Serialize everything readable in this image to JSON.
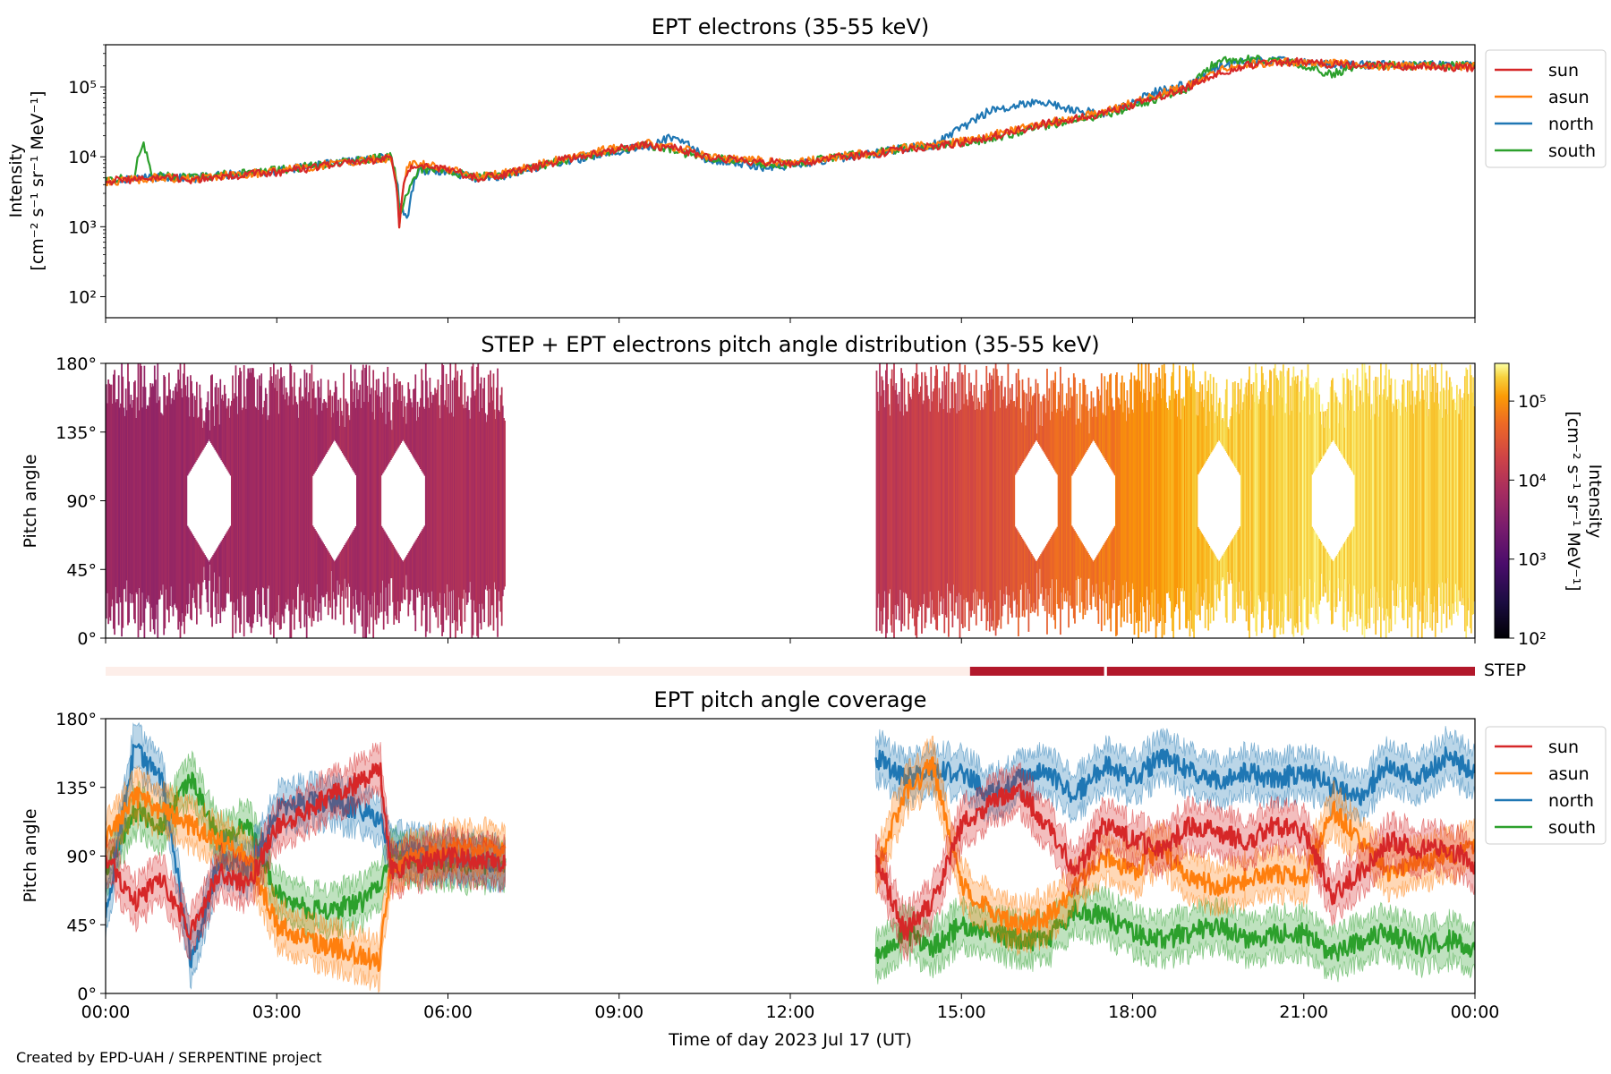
{
  "figure": {
    "footer": "Created by EPD-UAH / SERPENTINE project",
    "xlabel": "Time of day 2023 Jul 17 (UT)",
    "x_ticks": [
      "00:00",
      "03:00",
      "06:00",
      "09:00",
      "12:00",
      "15:00",
      "18:00",
      "21:00",
      "00:00"
    ]
  },
  "colors": {
    "sun": "#d62728",
    "asun": "#ff7f0e",
    "north": "#1f77b4",
    "south": "#2ca02c",
    "step": "#b2182b",
    "step_off": "#fdeee9"
  },
  "chart_data": [
    {
      "type": "line",
      "title": "EPT electrons (35-55 keV)",
      "ylabel_line1": "Intensity",
      "ylabel_line2": "[cm⁻² s⁻¹ sr⁻¹ MeV⁻¹]",
      "yscale": "log",
      "ylim": [
        50,
        400000
      ],
      "y_ticks": [
        "10²",
        "10³",
        "10⁴",
        "10⁵"
      ],
      "x_range_hours": [
        0,
        24
      ],
      "legend": "upper right outside",
      "series": [
        {
          "name": "sun",
          "x": [
            0,
            0.5,
            1,
            1.5,
            2,
            2.5,
            3,
            3.5,
            4,
            4.5,
            5,
            5.15,
            5.3,
            5.5,
            6,
            6.5,
            7,
            7.5,
            8,
            8.5,
            9,
            9.5,
            10,
            10.5,
            11,
            11.5,
            12,
            12.5,
            13,
            13.5,
            14,
            14.5,
            15,
            15.5,
            16,
            16.5,
            17,
            17.5,
            18,
            18.5,
            19,
            19.5,
            20,
            20.5,
            21,
            21.5,
            22,
            22.5,
            23,
            23.5,
            24
          ],
          "y": [
            4500,
            4800,
            5000,
            4700,
            5200,
            5600,
            6000,
            6800,
            7800,
            8600,
            9500,
            800,
            7000,
            7500,
            6500,
            5000,
            5500,
            7000,
            9000,
            11000,
            13000,
            15000,
            13000,
            10000,
            9000,
            8500,
            8000,
            9000,
            10000,
            11000,
            13000,
            14000,
            16000,
            19000,
            24000,
            30000,
            35000,
            42000,
            55000,
            75000,
            100000,
            160000,
            200000,
            220000,
            230000,
            210000,
            200000,
            200000,
            195000,
            190000,
            190000
          ]
        },
        {
          "name": "asun",
          "x": [
            0,
            0.5,
            1,
            1.5,
            2,
            2.5,
            3,
            3.5,
            4,
            4.5,
            5,
            5.15,
            5.3,
            5.5,
            6,
            6.5,
            7,
            7.5,
            8,
            8.5,
            9,
            9.5,
            10,
            10.5,
            11,
            11.5,
            12,
            12.5,
            13,
            13.5,
            14,
            14.5,
            15,
            15.5,
            16,
            16.5,
            17,
            17.5,
            18,
            18.5,
            19,
            19.5,
            20,
            20.5,
            21,
            21.5,
            22,
            22.5,
            23,
            23.5,
            24
          ],
          "y": [
            4400,
            4700,
            5100,
            4800,
            5300,
            5700,
            6200,
            7000,
            8000,
            8800,
            9700,
            650,
            7500,
            7800,
            6800,
            5200,
            5800,
            7300,
            9300,
            11500,
            13500,
            15500,
            13500,
            10500,
            9300,
            8800,
            8200,
            9200,
            10500,
            11500,
            13500,
            15000,
            16500,
            20000,
            25000,
            31000,
            36000,
            44000,
            58000,
            80000,
            105000,
            170000,
            210000,
            225000,
            220000,
            215000,
            205000,
            200000,
            200000,
            195000,
            195000
          ]
        },
        {
          "name": "north",
          "x": [
            0,
            0.5,
            1,
            1.5,
            2,
            2.5,
            3,
            3.5,
            4,
            4.5,
            5,
            5.15,
            5.3,
            5.5,
            6,
            6.5,
            7,
            7.5,
            8,
            8.5,
            9,
            9.5,
            10,
            10.5,
            11,
            11.5,
            12,
            12.5,
            13,
            13.5,
            14,
            14.5,
            15,
            15.5,
            16,
            16.5,
            17,
            17.5,
            18,
            18.5,
            19,
            19.5,
            20,
            20.5,
            21,
            21.5,
            22,
            22.5,
            23,
            23.5,
            24
          ],
          "y": [
            4600,
            4900,
            5200,
            4900,
            5400,
            5800,
            6300,
            7100,
            8100,
            9000,
            9900,
            2000,
            1300,
            6500,
            6000,
            5000,
            5400,
            6800,
            8500,
            10000,
            12000,
            14000,
            20000,
            9000,
            8500,
            7000,
            7500,
            8800,
            10000,
            11200,
            13200,
            14500,
            25000,
            45000,
            55000,
            60000,
            45000,
            42000,
            60000,
            90000,
            110000,
            200000,
            230000,
            235000,
            225000,
            210000,
            205000,
            205000,
            205000,
            210000,
            210000
          ]
        },
        {
          "name": "south",
          "x": [
            0,
            0.5,
            0.65,
            0.8,
            1,
            1.5,
            2,
            2.5,
            3,
            3.5,
            4,
            4.5,
            5,
            5.15,
            5.3,
            5.5,
            6,
            6.5,
            7,
            7.5,
            8,
            8.5,
            9,
            9.5,
            10,
            10.5,
            11,
            11.5,
            12,
            12.5,
            13,
            13.5,
            14,
            14.5,
            15,
            15.5,
            16,
            16.5,
            17,
            17.5,
            18,
            18.5,
            19,
            19.5,
            20,
            20.5,
            21,
            21.5,
            22,
            22.5,
            23,
            23.5,
            24
          ],
          "y": [
            4700,
            5000,
            16000,
            5200,
            5300,
            5000,
            5500,
            5900,
            6400,
            7200,
            8200,
            9100,
            10000,
            1500,
            3000,
            6800,
            6200,
            5100,
            5600,
            7100,
            8800,
            10500,
            12500,
            14500,
            12000,
            9500,
            9000,
            8000,
            7800,
            9000,
            10300,
            11300,
            13300,
            14500,
            15500,
            18000,
            22000,
            28000,
            34000,
            40000,
            52000,
            70000,
            95000,
            230000,
            250000,
            240000,
            200000,
            150000,
            210000,
            205000,
            200000,
            200000,
            200000
          ]
        }
      ]
    },
    {
      "type": "heatmap",
      "title": "STEP + EPT electrons pitch angle distribution (35-55 keV)",
      "ylabel": "Pitch angle",
      "ylim": [
        0,
        180
      ],
      "y_ticks": [
        "0°",
        "45°",
        "90°",
        "135°",
        "180°"
      ],
      "x_range_hours": [
        0,
        24
      ],
      "data_segments_hours": [
        [
          0,
          7.0
        ],
        [
          13.5,
          24
        ]
      ],
      "colorbar": {
        "label_line1": "Intensity",
        "label_line2": "[cm⁻² s⁻¹ sr⁻¹ MeV⁻¹]",
        "scale": "log",
        "range": [
          100,
          300000
        ],
        "ticks": [
          "10²",
          "10³",
          "10⁴",
          "10⁵"
        ]
      },
      "intensity_by_hour": {
        "x": [
          0,
          3,
          6,
          7,
          13.5,
          15,
          16.5,
          18,
          19.5,
          21,
          24
        ],
        "y": [
          5000,
          6500,
          8000,
          9000,
          11000,
          20000,
          40000,
          80000,
          180000,
          220000,
          200000
        ]
      },
      "gap_center_hours": [
        1.8,
        4.0,
        5.2,
        16.3,
        17.3,
        19.5,
        21.5
      ]
    },
    {
      "type": "bar",
      "title": "",
      "label": "STEP",
      "segments": [
        {
          "start": 0,
          "end": 15.15,
          "state": "off"
        },
        {
          "start": 15.15,
          "end": 17.5,
          "state": "on"
        },
        {
          "start": 17.55,
          "end": 24,
          "state": "on"
        }
      ]
    },
    {
      "type": "line",
      "title": "EPT pitch angle coverage",
      "ylabel": "Pitch angle",
      "ylim": [
        0,
        180
      ],
      "y_ticks": [
        "0°",
        "45°",
        "90°",
        "135°",
        "180°"
      ],
      "x_range_hours": [
        0,
        24
      ],
      "legend": "upper right outside",
      "segments_hours": [
        [
          0,
          7.0
        ],
        [
          13.5,
          24
        ]
      ],
      "series": [
        {
          "name": "sun",
          "x": [
            0,
            0.5,
            1,
            1.5,
            2,
            2.5,
            3,
            3.5,
            4,
            4.5,
            4.8,
            5,
            6,
            7,
            13.5,
            14,
            14.5,
            15,
            15.5,
            16,
            16.5,
            17,
            17.5,
            18,
            18.5,
            19,
            19.5,
            20,
            20.5,
            21,
            21.5,
            22,
            22.5,
            23,
            23.5,
            24
          ],
          "y": [
            90,
            60,
            75,
            40,
            80,
            70,
            110,
            120,
            130,
            140,
            150,
            80,
            90,
            85,
            90,
            40,
            60,
            110,
            125,
            135,
            110,
            80,
            110,
            100,
            95,
            110,
            105,
            100,
            110,
            105,
            65,
            80,
            100,
            95,
            95,
            85
          ]
        },
        {
          "name": "asun",
          "x": [
            0,
            0.5,
            1,
            1.5,
            2,
            2.5,
            3,
            3.5,
            4,
            4.5,
            4.8,
            5,
            6,
            7,
            13.5,
            14,
            14.5,
            15,
            15.5,
            16,
            16.5,
            17,
            17.5,
            18,
            18.5,
            19,
            19.5,
            20,
            20.5,
            21,
            21.5,
            22,
            22.5,
            23,
            23.5,
            24
          ],
          "y": [
            100,
            130,
            120,
            110,
            100,
            90,
            45,
            35,
            30,
            25,
            20,
            85,
            95,
            95,
            80,
            130,
            150,
            70,
            55,
            45,
            50,
            70,
            90,
            80,
            95,
            75,
            70,
            75,
            80,
            75,
            120,
            100,
            80,
            85,
            90,
            95
          ]
        },
        {
          "name": "north",
          "x": [
            0,
            0.5,
            1,
            1.5,
            2,
            2.5,
            3,
            3.5,
            4,
            4.5,
            4.8,
            5,
            6,
            7,
            13.5,
            14,
            14.5,
            15,
            15.5,
            16,
            16.5,
            17,
            17.5,
            18,
            18.5,
            19,
            19.5,
            20,
            20.5,
            21,
            21.5,
            22,
            22.5,
            23,
            23.5,
            24
          ],
          "y": [
            50,
            160,
            140,
            20,
            90,
            80,
            120,
            125,
            125,
            120,
            115,
            95,
            90,
            85,
            155,
            140,
            145,
            145,
            130,
            140,
            145,
            130,
            150,
            140,
            155,
            145,
            140,
            145,
            140,
            145,
            135,
            130,
            150,
            140,
            155,
            145
          ]
        },
        {
          "name": "south",
          "x": [
            0,
            0.5,
            1,
            1.5,
            2,
            2.5,
            3,
            3.5,
            4,
            4.5,
            4.8,
            5,
            6,
            7,
            13.5,
            14,
            14.5,
            15,
            15.5,
            16,
            16.5,
            17,
            17.5,
            18,
            18.5,
            19,
            19.5,
            20,
            20.5,
            21,
            21.5,
            22,
            22.5,
            23,
            23.5,
            24
          ],
          "y": [
            80,
            120,
            110,
            140,
            100,
            110,
            65,
            55,
            55,
            60,
            70,
            90,
            85,
            85,
            25,
            40,
            30,
            45,
            40,
            35,
            35,
            55,
            50,
            40,
            35,
            40,
            45,
            35,
            40,
            40,
            25,
            35,
            40,
            30,
            35,
            30
          ]
        }
      ]
    }
  ]
}
